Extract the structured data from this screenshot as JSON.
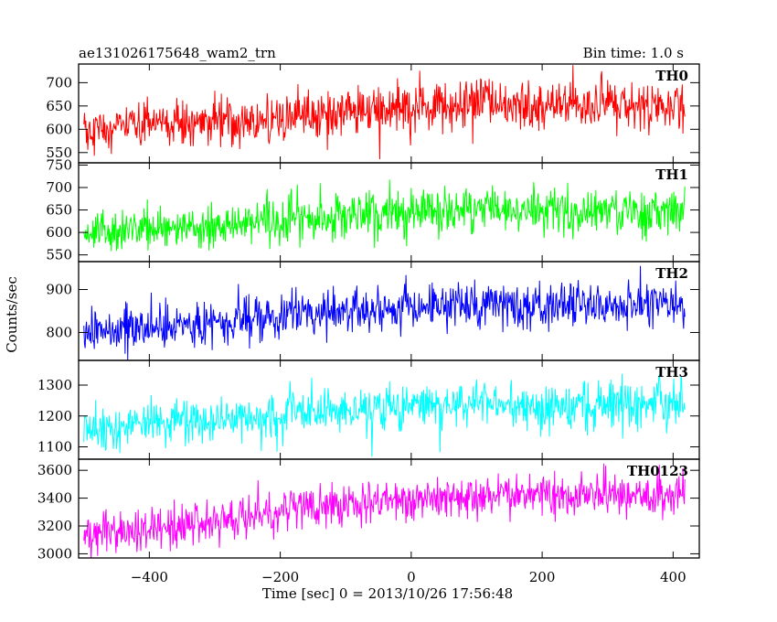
{
  "header": {
    "title": "ae131026175648_wam2_trn",
    "bin_time": "Bin time: 1.0 s"
  },
  "axes": {
    "xlabel": "Time [sec] 0 = 2013/10/26 17:56:48",
    "ylabel": "Counts/sec",
    "xlim": [
      -508,
      440
    ],
    "xticks": [
      -400,
      -200,
      0,
      200,
      400
    ],
    "xtick_labels": [
      "−400",
      "−200",
      "0",
      "200",
      "400"
    ]
  },
  "chart_data": {
    "type": "line",
    "x_range": [
      -500,
      418
    ],
    "bin_time_s": 1.0,
    "panels": [
      {
        "label": "TH0",
        "color": "#ff0000",
        "ylim": [
          528,
          740
        ],
        "yticks": [
          550,
          600,
          650,
          700
        ],
        "ytick_labels": [
          "550",
          "600",
          "650",
          "700"
        ],
        "trend": [
          [
            -500,
            598
          ],
          [
            -300,
            615
          ],
          [
            -100,
            635
          ],
          [
            100,
            652
          ],
          [
            418,
            652
          ]
        ],
        "noise_sd": 26
      },
      {
        "label": "TH1",
        "color": "#00ff00",
        "ylim": [
          535,
          755
        ],
        "yticks": [
          550,
          600,
          650,
          700,
          750
        ],
        "ytick_labels": [
          "550",
          "600",
          "650",
          "700",
          "750"
        ],
        "trend": [
          [
            -500,
            598
          ],
          [
            -300,
            615
          ],
          [
            -100,
            635
          ],
          [
            100,
            650
          ],
          [
            418,
            650
          ]
        ],
        "noise_sd": 25
      },
      {
        "label": "TH2",
        "color": "#0000ff",
        "ylim": [
          735,
          965
        ],
        "yticks": [
          800,
          900
        ],
        "ytick_labels": [
          "800",
          "900"
        ],
        "trend": [
          [
            -500,
            808
          ],
          [
            -300,
            825
          ],
          [
            -100,
            850
          ],
          [
            100,
            865
          ],
          [
            418,
            865
          ]
        ],
        "noise_sd": 27
      },
      {
        "label": "TH3",
        "color": "#00ffff",
        "ylim": [
          1060,
          1380
        ],
        "yticks": [
          1100,
          1200,
          1300
        ],
        "ytick_labels": [
          "1100",
          "1200",
          "1300"
        ],
        "trend": [
          [
            -500,
            1160
          ],
          [
            -300,
            1185
          ],
          [
            -100,
            1220
          ],
          [
            100,
            1240
          ],
          [
            418,
            1240
          ]
        ],
        "noise_sd": 38
      },
      {
        "label": "TH0123",
        "color": "#ff00ff",
        "ylim": [
          2970,
          3680
        ],
        "yticks": [
          3000,
          3200,
          3400,
          3600
        ],
        "ytick_labels": [
          "3000",
          "3200",
          "3400",
          "3600"
        ],
        "trend": [
          [
            -500,
            3120
          ],
          [
            -300,
            3240
          ],
          [
            -100,
            3360
          ],
          [
            100,
            3420
          ],
          [
            418,
            3420
          ]
        ],
        "noise_sd": 75
      }
    ]
  }
}
